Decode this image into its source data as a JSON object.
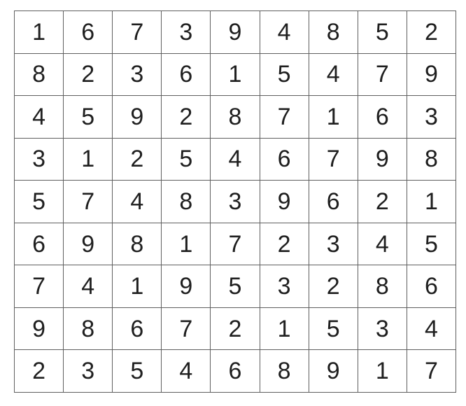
{
  "grid": {
    "size": 9,
    "rows": [
      [
        1,
        6,
        7,
        3,
        9,
        4,
        8,
        5,
        2
      ],
      [
        8,
        2,
        3,
        6,
        1,
        5,
        4,
        7,
        9
      ],
      [
        4,
        5,
        9,
        2,
        8,
        7,
        1,
        6,
        3
      ],
      [
        3,
        1,
        2,
        5,
        4,
        6,
        7,
        9,
        8
      ],
      [
        5,
        7,
        4,
        8,
        3,
        9,
        6,
        2,
        1
      ],
      [
        6,
        9,
        8,
        1,
        7,
        2,
        3,
        4,
        5
      ],
      [
        7,
        4,
        1,
        9,
        5,
        3,
        2,
        8,
        6
      ],
      [
        9,
        8,
        6,
        7,
        2,
        1,
        5,
        3,
        4
      ],
      [
        2,
        3,
        5,
        4,
        6,
        8,
        9,
        1,
        7
      ]
    ]
  },
  "colors": {
    "background": "#ffffff",
    "grid_line": "#5f5f5f",
    "number_text": "#1f1f1f"
  }
}
